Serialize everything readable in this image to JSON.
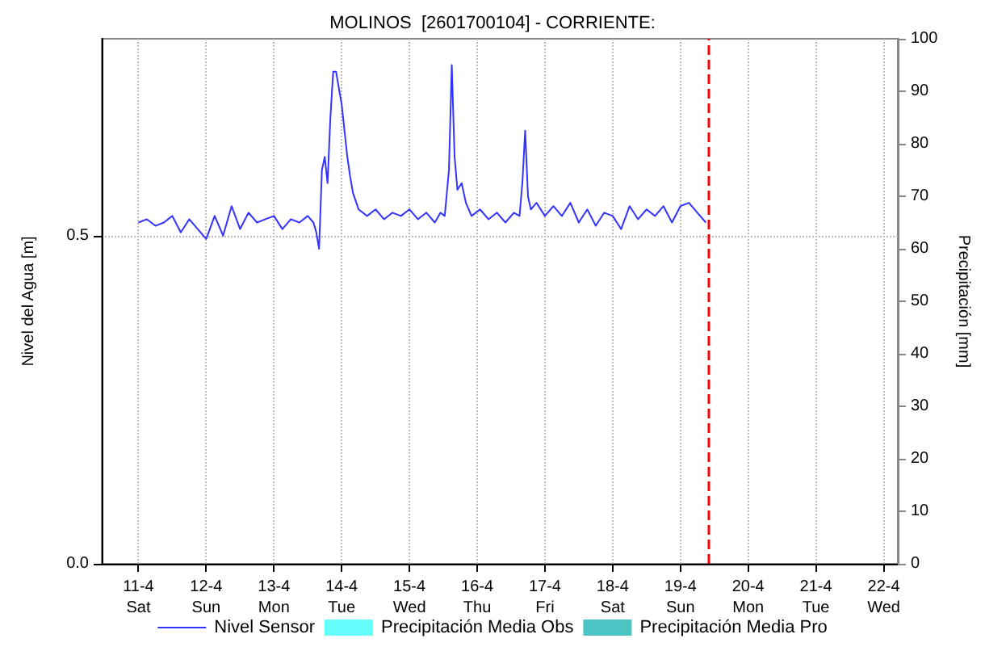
{
  "chart_data": {
    "type": "line",
    "title": "MOLINOS  [2601700104] - CORRIENTE:",
    "ylabel": "Nivel del Agua [m]",
    "y2label": "Precipitación [mm]",
    "xlim": [
      "--04-10T11:00",
      "--04-22T05:00"
    ],
    "xticks": [
      {
        "value": "--04-11",
        "label": "11-4\nSat"
      },
      {
        "value": "--04-12",
        "label": "12-4\nSun"
      },
      {
        "value": "--04-13",
        "label": "13-4\nMon"
      },
      {
        "value": "--04-14",
        "label": "14-4\nTue"
      },
      {
        "value": "--04-15",
        "label": "15-4\nWed"
      },
      {
        "value": "--04-16",
        "label": "16-4\nThu"
      },
      {
        "value": "--04-17",
        "label": "17-4\nFri"
      },
      {
        "value": "--04-18",
        "label": "18-4\nSat"
      },
      {
        "value": "--04-19",
        "label": "19-4\nSun"
      },
      {
        "value": "--04-20",
        "label": "20-4\nMon"
      },
      {
        "value": "--04-21",
        "label": "21-4\nTue"
      },
      {
        "value": "--04-22",
        "label": "22-4\nWed"
      }
    ],
    "ylim": [
      0,
      0.8
    ],
    "yticks": [
      {
        "value": 0,
        "label": "0.0"
      },
      {
        "value": 0.5,
        "label": "0.5"
      }
    ],
    "y2lim": [
      0,
      100
    ],
    "y2ticks": [
      0,
      10,
      20,
      30,
      40,
      50,
      60,
      70,
      80,
      90,
      100
    ],
    "grid": true,
    "legend": "bottom",
    "marker": "none",
    "line_style": "solid",
    "ref_lines": [
      {
        "axis": "x",
        "value": "--04-19T10:00",
        "label": null,
        "color": "#ff0000",
        "line_style": "dashed"
      }
    ],
    "series": [
      {
        "name": "Nivel Sensor",
        "color": "#3333ff",
        "x": [
          "--04-11T00:00",
          "--04-11T03:00",
          "--04-11T06:00",
          "--04-11T09:00",
          "--04-11T12:00",
          "--04-11T15:00",
          "--04-11T18:00",
          "--04-11T21:00",
          "--04-12T00:00",
          "--04-12T03:00",
          "--04-12T06:00",
          "--04-12T09:00",
          "--04-12T12:00",
          "--04-12T15:00",
          "--04-12T18:00",
          "--04-12T21:00",
          "--04-13T00:00",
          "--04-13T03:00",
          "--04-13T06:00",
          "--04-13T09:00",
          "--04-13T12:00",
          "--04-13T14:00",
          "--04-13T15:00",
          "--04-13T16:00",
          "--04-13T17:00",
          "--04-13T18:00",
          "--04-13T19:00",
          "--04-13T20:00",
          "--04-13T21:00",
          "--04-13T22:00",
          "--04-14T00:00",
          "--04-14T01:00",
          "--04-14T02:00",
          "--04-14T03:00",
          "--04-14T04:00",
          "--04-14T06:00",
          "--04-14T09:00",
          "--04-14T12:00",
          "--04-14T15:00",
          "--04-14T18:00",
          "--04-14T21:00",
          "--04-15T00:00",
          "--04-15T03:00",
          "--04-15T06:00",
          "--04-15T09:00",
          "--04-15T11:00",
          "--04-15T12:30",
          "--04-15T14:00",
          "--04-15T15:00",
          "--04-15T16:00",
          "--04-15T17:00",
          "--04-15T18:30",
          "--04-15T20:00",
          "--04-15T22:00",
          "--04-16T01:00",
          "--04-16T04:00",
          "--04-16T07:00",
          "--04-16T10:00",
          "--04-16T13:00",
          "--04-16T15:00",
          "--04-16T16:00",
          "--04-16T17:00",
          "--04-16T18:00",
          "--04-16T19:00",
          "--04-16T21:00",
          "--04-17T00:00",
          "--04-17T03:00",
          "--04-17T06:00",
          "--04-17T09:00",
          "--04-17T12:00",
          "--04-17T15:00",
          "--04-17T18:00",
          "--04-17T21:00",
          "--04-18T00:00",
          "--04-18T03:00",
          "--04-18T06:00",
          "--04-18T09:00",
          "--04-18T12:00",
          "--04-18T15:00",
          "--04-18T18:00",
          "--04-18T21:00",
          "--04-19T00:00",
          "--04-19T03:00",
          "--04-19T06:00",
          "--04-19T09:00"
        ],
        "values": [
          0.52,
          0.525,
          0.515,
          0.52,
          0.53,
          0.505,
          0.525,
          0.51,
          0.495,
          0.53,
          0.5,
          0.545,
          0.51,
          0.535,
          0.52,
          0.525,
          0.53,
          0.51,
          0.525,
          0.52,
          0.53,
          0.52,
          0.505,
          0.48,
          0.6,
          0.62,
          0.58,
          0.68,
          0.75,
          0.75,
          0.7,
          0.66,
          0.62,
          0.59,
          0.565,
          0.54,
          0.53,
          0.54,
          0.525,
          0.535,
          0.53,
          0.54,
          0.525,
          0.535,
          0.52,
          0.535,
          0.53,
          0.6,
          0.76,
          0.62,
          0.57,
          0.58,
          0.55,
          0.53,
          0.54,
          0.525,
          0.535,
          0.52,
          0.535,
          0.53,
          0.58,
          0.66,
          0.56,
          0.54,
          0.55,
          0.53,
          0.545,
          0.53,
          0.55,
          0.52,
          0.54,
          0.515,
          0.535,
          0.53,
          0.51,
          0.545,
          0.525,
          0.54,
          0.53,
          0.545,
          0.52,
          0.545,
          0.55,
          0.535,
          0.52
        ]
      },
      {
        "name": "Precipitación Media Obs",
        "type": "bar",
        "color": "#66ffff"
      },
      {
        "name": "Precipitación Media Pro",
        "type": "bar",
        "color": "#4cc4c4"
      }
    ]
  }
}
